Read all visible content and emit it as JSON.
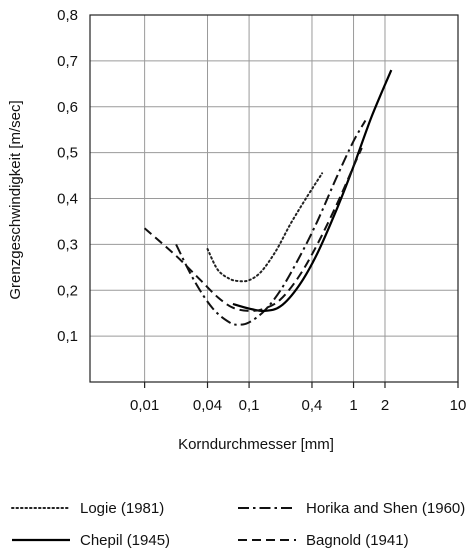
{
  "chart_data": {
    "type": "line",
    "title": "",
    "xlabel": "Korndurchmesser [mm]",
    "ylabel": "Grenzgeschwindigkeit [m/sec]",
    "xscale": "log",
    "xlim": [
      0.003,
      10
    ],
    "ylim": [
      0,
      0.8
    ],
    "x_ticks": [
      0.01,
      0.04,
      0.1,
      0.4,
      1,
      2,
      10
    ],
    "x_tick_labels": [
      "0,01",
      "0,04",
      "0,1",
      "0,4",
      "1",
      "2",
      "10"
    ],
    "y_ticks": [
      0.1,
      0.2,
      0.3,
      0.4,
      0.5,
      0.6,
      0.7,
      0.8
    ],
    "y_tick_labels": [
      "0,1",
      "0,2",
      "0,3",
      "0,4",
      "0,5",
      "0,6",
      "0,7",
      "0,8"
    ],
    "grid": true,
    "legend_position": "bottom",
    "series": [
      {
        "name": "Logie (1981)",
        "style": "dotted",
        "color": "#222222",
        "x": [
          0.04,
          0.05,
          0.065,
          0.08,
          0.1,
          0.13,
          0.18,
          0.25,
          0.35,
          0.5
        ],
        "y": [
          0.29,
          0.245,
          0.225,
          0.22,
          0.222,
          0.24,
          0.285,
          0.345,
          0.4,
          0.455
        ]
      },
      {
        "name": "Horika and Shen (1960)",
        "style": "dashdot",
        "color": "#111111",
        "x": [
          0.02,
          0.03,
          0.045,
          0.065,
          0.08,
          0.1,
          0.14,
          0.2,
          0.3,
          0.45,
          0.7,
          1.0,
          1.3
        ],
        "y": [
          0.3,
          0.22,
          0.16,
          0.13,
          0.125,
          0.13,
          0.155,
          0.2,
          0.27,
          0.35,
          0.45,
          0.525,
          0.57
        ]
      },
      {
        "name": "Chepil (1945)",
        "style": "solid",
        "color": "#000000",
        "x": [
          0.07,
          0.1,
          0.14,
          0.2,
          0.3,
          0.45,
          0.7,
          1.0,
          1.5,
          2.3
        ],
        "y": [
          0.17,
          0.16,
          0.155,
          0.165,
          0.21,
          0.28,
          0.38,
          0.47,
          0.58,
          0.68
        ]
      },
      {
        "name": "Bagnold (1941)",
        "style": "dashed",
        "color": "#111111",
        "x": [
          0.01,
          0.02,
          0.035,
          0.05,
          0.07,
          0.1,
          0.14,
          0.2,
          0.3,
          0.45,
          0.7,
          1.0,
          1.2
        ],
        "y": [
          0.335,
          0.275,
          0.22,
          0.185,
          0.162,
          0.155,
          0.16,
          0.18,
          0.23,
          0.3,
          0.39,
          0.47,
          0.51
        ]
      }
    ]
  }
}
